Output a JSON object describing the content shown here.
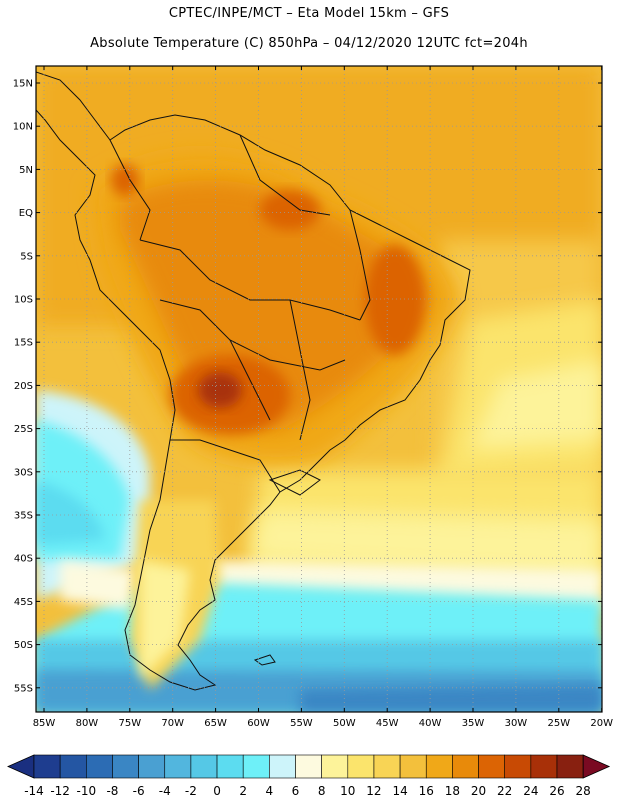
{
  "header": {
    "line1": "CPTEC/INPE/MCT –  Eta Model 15km – GFS",
    "line2": "Absolute Temperature (C) 850hPa – 04/12/2020 12UTC fct=204h"
  },
  "lat_labels": [
    "15N",
    "10N",
    "5N",
    "EQ",
    "5S",
    "10S",
    "15S",
    "20S",
    "25S",
    "30S",
    "35S",
    "40S",
    "45S",
    "50S",
    "55S"
  ],
  "lon_labels": [
    "85W",
    "80W",
    "75W",
    "70W",
    "65W",
    "60W",
    "55W",
    "50W",
    "45W",
    "40W",
    "35W",
    "30W",
    "25W",
    "20W"
  ],
  "colorbar": {
    "labels": [
      "-14",
      "-12",
      "-10",
      "-8",
      "-6",
      "-4",
      "-2",
      "0",
      "2",
      "4",
      "6",
      "8",
      "10",
      "12",
      "14",
      "16",
      "18",
      "20",
      "22",
      "24",
      "26",
      "28"
    ],
    "colors": [
      "#1e3d8f",
      "#2456a3",
      "#2c6cb4",
      "#3a86c4",
      "#4aa0d2",
      "#52b6de",
      "#55c8e6",
      "#5cdcf0",
      "#6ef0f8",
      "#cdf4fa",
      "#fdfadf",
      "#fdf39a",
      "#fbe46c",
      "#f8d455",
      "#f3c03c",
      "#f0a818",
      "#e88a0a",
      "#dc6404",
      "#c84a04",
      "#a83008",
      "#882010"
    ],
    "low_color": "#1a2f80",
    "high_color": "#7a0a22"
  }
}
